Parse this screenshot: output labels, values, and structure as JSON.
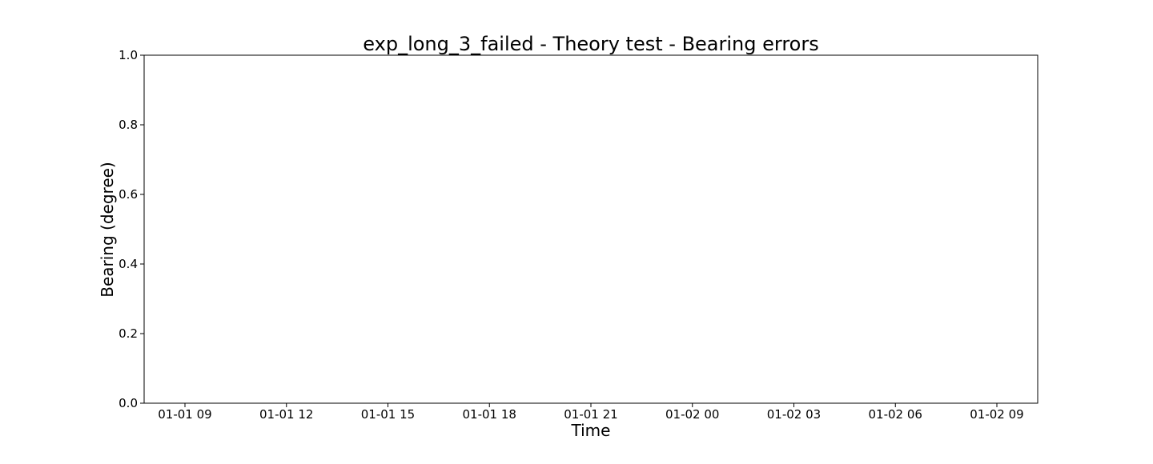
{
  "chart_data": {
    "type": "line",
    "title": "exp_long_3_failed - Theory test - Bearing errors",
    "xlabel": "Time",
    "ylabel": "Bearing (degree)",
    "ylim": [
      0.0,
      1.0
    ],
    "y_ticks": [
      "0.0",
      "0.2",
      "0.4",
      "0.6",
      "0.8",
      "1.0"
    ],
    "x_ticks": [
      "01-01 09",
      "01-01 12",
      "01-01 15",
      "01-01 18",
      "01-01 21",
      "01-02 00",
      "01-02 03",
      "01-02 06",
      "01-02 09"
    ],
    "grid": false,
    "series": []
  }
}
